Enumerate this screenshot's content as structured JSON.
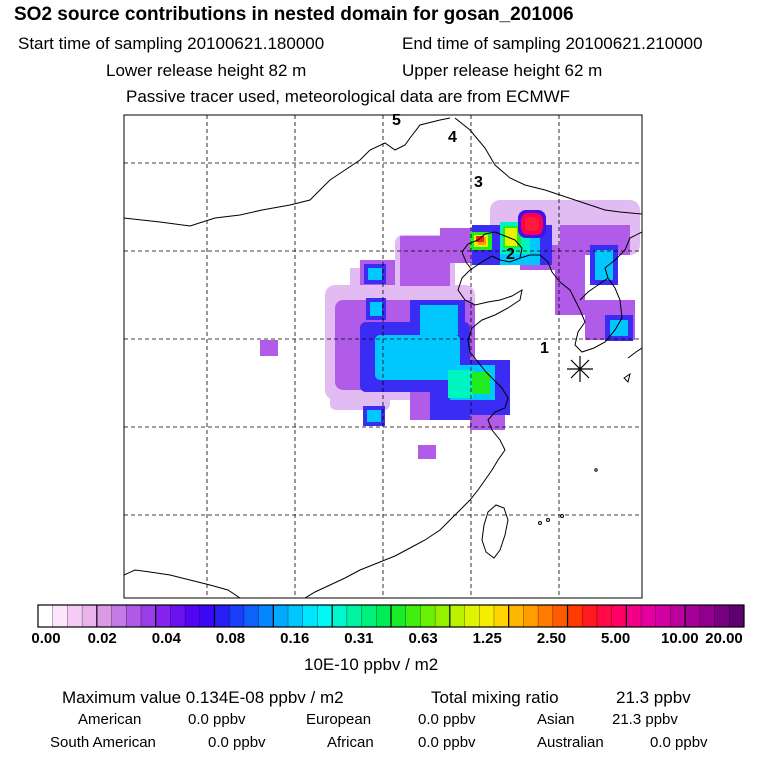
{
  "header": {
    "title": "SO2 source contributions in nested domain for gosan_201006",
    "start_sampling": "Start time of sampling 20100621.180000",
    "end_sampling": "End time of sampling 20100621.210000",
    "lower_release": "Lower release height   82 m",
    "upper_release": "Upper release height   62 m",
    "tracer_note": "Passive tracer used, meteorological data are from ECMWF"
  },
  "map": {
    "trajectory_labels": [
      "1",
      "2",
      "3",
      "4",
      "5"
    ],
    "receptor_symbol": "gosan receptor star"
  },
  "colorbar": {
    "ticks": [
      "0.00",
      "0.02",
      "0.04",
      "0.08",
      "0.16",
      "0.31",
      "0.63",
      "1.25",
      "2.50",
      "5.00",
      "10.00",
      "20.00"
    ],
    "colors": [
      "#ffffff",
      "#fbe6fb",
      "#f4ccf4",
      "#eab3ec",
      "#dd99e6",
      "#c67ae6",
      "#b05be8",
      "#9a3cea",
      "#8424ee",
      "#6a12f0",
      "#5006f2",
      "#3a08f4",
      "#2a1ef6",
      "#1a3ef8",
      "#0e62fa",
      "#0686fc",
      "#00aaff",
      "#00c8ff",
      "#00e4ff",
      "#00f8f4",
      "#00f6cc",
      "#00f4a4",
      "#00f07c",
      "#00ec54",
      "#18ec28",
      "#40ee10",
      "#6af004",
      "#94f200",
      "#bcf200",
      "#def400",
      "#f6ee00",
      "#ffd400",
      "#ffb800",
      "#ff9c00",
      "#ff7c00",
      "#ff5a00",
      "#ff3a00",
      "#ff1a20",
      "#ff0a44",
      "#ff0066",
      "#f40088",
      "#e400a0",
      "#d200a4",
      "#bc00a0",
      "#a6009a",
      "#900090",
      "#780080",
      "#600070"
    ],
    "unit": "10E-10 ppbv / m2"
  },
  "footer": {
    "max_label": "Maximum value  0.134E-08 ppbv / m2",
    "total_label": "Total mixing ratio",
    "total_value": "21.3 ppbv",
    "regions": [
      {
        "name": "American",
        "value": "0.0 ppbv"
      },
      {
        "name": "European",
        "value": "0.0 ppbv"
      },
      {
        "name": "Asian",
        "value": "21.3 ppbv"
      },
      {
        "name": "South American",
        "value": "0.0 ppbv"
      },
      {
        "name": "African",
        "value": "0.0 ppbv"
      },
      {
        "name": "Australian",
        "value": "0.0 ppbv"
      }
    ]
  }
}
